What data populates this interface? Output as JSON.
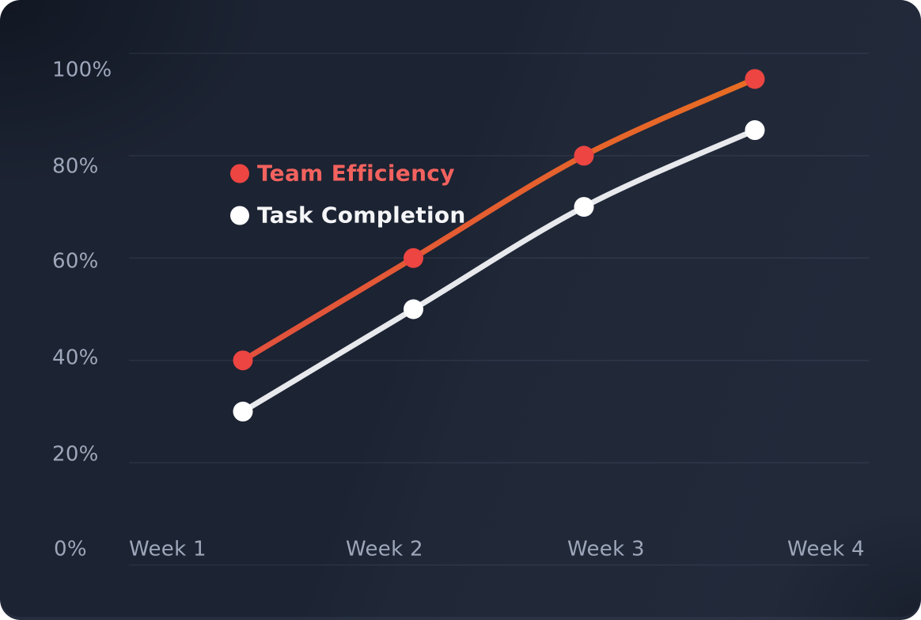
{
  "colors": {
    "card_background": "#1c2332",
    "grid_line": "rgba(170,185,212,0.10)",
    "axis_text": "#9ea7ba",
    "team_efficiency_red": "#ec4542",
    "team_efficiency_line_start": "#e04a43",
    "team_efficiency_line_end": "#e9731d",
    "task_completion_white": "#ffffff"
  },
  "chart_data": {
    "type": "line",
    "title": "",
    "xlabel": "",
    "ylabel": "",
    "x": [
      "Week 1",
      "Week 2",
      "Week 3",
      "Week 4"
    ],
    "y_ticks": [
      "100%",
      "80%",
      "60%",
      "40%",
      "20%",
      "0%"
    ],
    "y_tick_values": [
      100,
      80,
      60,
      40,
      20,
      0
    ],
    "ylim": [
      0,
      100
    ],
    "grid": true,
    "legend_position": "inside-upper-left",
    "series": [
      {
        "name": "Team Efficiency",
        "values": [
          40,
          60,
          80,
          95
        ],
        "point_color": "#ec4542",
        "label_color": "#f2625e",
        "line_gradient": [
          "#e04a43",
          "#e9731d"
        ]
      },
      {
        "name": "Task Completion",
        "values": [
          30,
          50,
          70,
          85
        ],
        "point_color": "#ffffff",
        "label_color": "#f4f5f7",
        "line_gradient": [
          "#e7e9ed",
          "#e7e9ed"
        ]
      }
    ]
  }
}
